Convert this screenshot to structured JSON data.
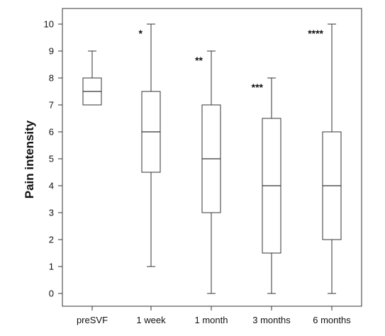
{
  "chart_data": {
    "type": "boxplot",
    "title": "",
    "xlabel": "",
    "ylabel": "Pain intensity",
    "ylim": [
      0,
      10
    ],
    "yticks": [
      0,
      1,
      2,
      3,
      4,
      5,
      6,
      7,
      8,
      9,
      10
    ],
    "grid": false,
    "categories": [
      "preSVF",
      "1 week",
      "1 month",
      "3 months",
      "6 months"
    ],
    "boxes": [
      {
        "label": "preSVF",
        "min": 7,
        "q1": 7,
        "median": 7.5,
        "q3": 8,
        "max": 9,
        "annotation": ""
      },
      {
        "label": "1 week",
        "min": 1,
        "q1": 4.5,
        "median": 6,
        "q3": 7.5,
        "max": 10,
        "annotation": "*"
      },
      {
        "label": "1 month",
        "min": 0,
        "q1": 3,
        "median": 5,
        "q3": 7,
        "max": 9,
        "annotation": "**"
      },
      {
        "label": "3 months",
        "min": 0,
        "q1": 1.5,
        "median": 4,
        "q3": 6.5,
        "max": 8,
        "annotation": "***"
      },
      {
        "label": "6 months",
        "min": 0,
        "q1": 2,
        "median": 4,
        "q3": 6,
        "max": 10,
        "annotation": "****"
      }
    ],
    "colors": {
      "stroke": "#333333",
      "fill": "#ffffff"
    }
  }
}
